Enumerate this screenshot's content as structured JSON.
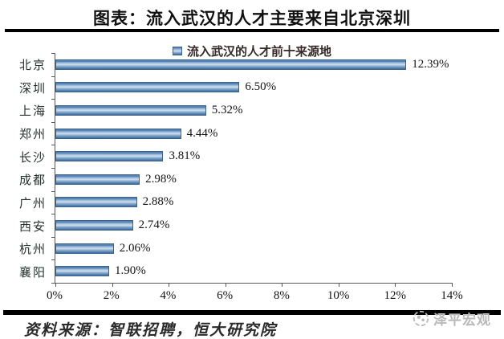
{
  "page_title": "图表：流入武汉的人才主要来自北京深圳",
  "legend": {
    "label": "流入武汉的人才前十来源地",
    "marker_color": "#4f81bd"
  },
  "chart_data": {
    "type": "bar",
    "orientation": "horizontal",
    "title": "流入武汉的人才前十来源地",
    "categories": [
      "北京",
      "深圳",
      "上海",
      "郑州",
      "长沙",
      "成都",
      "广州",
      "西安",
      "杭州",
      "襄阳"
    ],
    "values": [
      12.39,
      6.5,
      5.32,
      4.44,
      3.81,
      2.98,
      2.88,
      2.74,
      2.06,
      1.9
    ],
    "value_labels": [
      "12.39%",
      "6.50%",
      "5.32%",
      "4.44%",
      "3.81%",
      "2.98%",
      "2.88%",
      "2.74%",
      "2.06%",
      "1.90%"
    ],
    "xlabel": "",
    "ylabel": "",
    "xlim": [
      0,
      14
    ],
    "x_tick_labels": [
      "0%",
      "2%",
      "4%",
      "6%",
      "8%",
      "10%",
      "12%",
      "14%"
    ],
    "grid": false,
    "legend_position": "top",
    "bar_color": "#4f81bd"
  },
  "footer": {
    "source": "资料来源：智联招聘，恒大研究院",
    "watermark": "泽平宏观"
  },
  "colors": {
    "bar_border": "#3a6392",
    "axis": "#595959",
    "divider": "#000000",
    "watermark_gray": "#b9b9b9"
  }
}
